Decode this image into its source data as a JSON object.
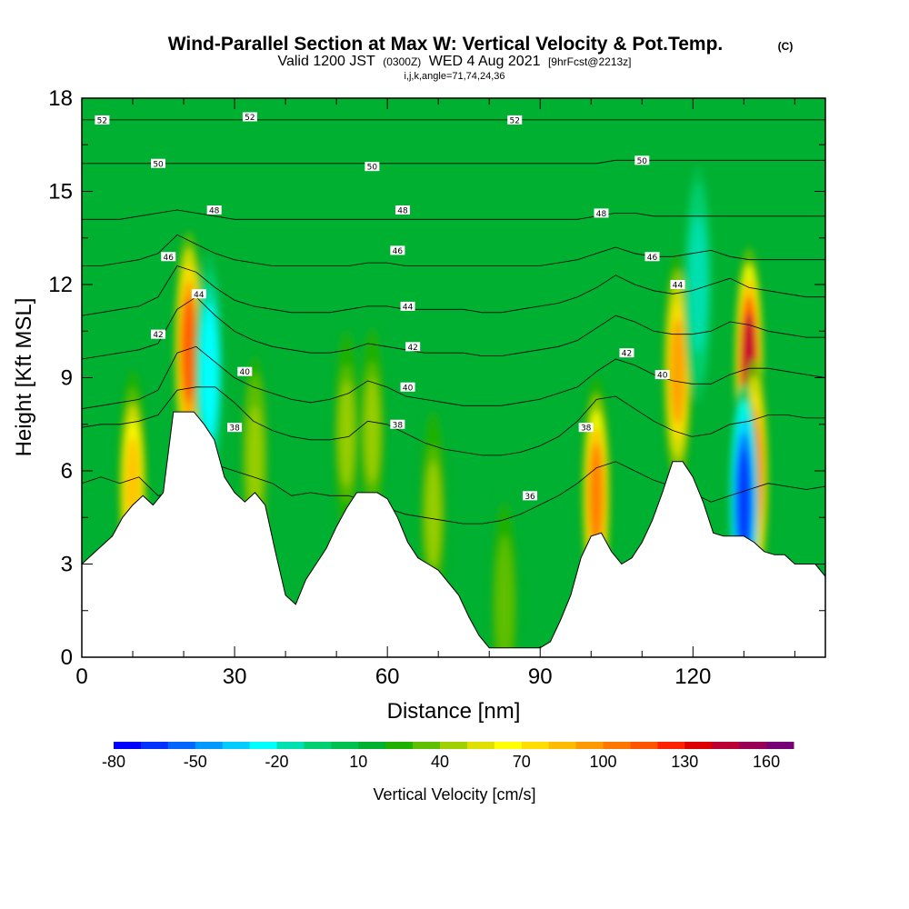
{
  "title": {
    "main": "Wind-Parallel Section at Max W: Vertical Velocity & Pot.Temp.",
    "copyright": "(C)",
    "valid_prefix": "Valid 1200 JST",
    "valid_utc": "(0300Z)",
    "valid_date": "WED 4 Aug 2021",
    "forecast": "[9hrFcst@2213z]",
    "indices": "i,j,k,angle=71,74,24,36"
  },
  "chart_data": {
    "type": "heatmap",
    "xlabel": "Distance [nm]",
    "ylabel": "Height [Kft MSL]",
    "xlim": [
      0,
      146
    ],
    "ylim": [
      0,
      18
    ],
    "x_ticks": [
      "0",
      "30",
      "60",
      "90",
      "120"
    ],
    "y_ticks": [
      "0",
      "3",
      "6",
      "9",
      "12",
      "15",
      "18"
    ],
    "x_tick_values": [
      0,
      30,
      60,
      90,
      120
    ],
    "y_tick_values": [
      0,
      3,
      6,
      9,
      12,
      15,
      18
    ],
    "x_minor_step": 10,
    "y_minor_step": 1.5,
    "background_color": "#00b030",
    "terrain": [
      [
        0,
        3.0
      ],
      [
        2,
        3.3
      ],
      [
        4,
        3.6
      ],
      [
        6,
        3.9
      ],
      [
        8,
        4.5
      ],
      [
        10,
        4.9
      ],
      [
        12,
        5.2
      ],
      [
        14,
        4.9
      ],
      [
        16,
        5.3
      ],
      [
        18,
        7.9
      ],
      [
        22,
        7.9
      ],
      [
        24,
        7.5
      ],
      [
        26,
        7.0
      ],
      [
        28,
        5.8
      ],
      [
        30,
        5.3
      ],
      [
        32,
        5.0
      ],
      [
        34,
        5.3
      ],
      [
        36,
        4.9
      ],
      [
        38,
        3.4
      ],
      [
        40,
        2.0
      ],
      [
        42,
        1.7
      ],
      [
        44,
        2.5
      ],
      [
        46,
        3.0
      ],
      [
        48,
        3.5
      ],
      [
        50,
        4.2
      ],
      [
        52,
        4.8
      ],
      [
        54,
        5.3
      ],
      [
        56,
        5.3
      ],
      [
        58,
        5.3
      ],
      [
        60,
        5.1
      ],
      [
        62,
        4.5
      ],
      [
        64,
        3.7
      ],
      [
        66,
        3.2
      ],
      [
        68,
        3.0
      ],
      [
        70,
        2.8
      ],
      [
        72,
        2.4
      ],
      [
        74,
        2.0
      ],
      [
        76,
        1.3
      ],
      [
        78,
        0.7
      ],
      [
        80,
        0.3
      ],
      [
        84,
        0.3
      ],
      [
        88,
        0.3
      ],
      [
        90,
        0.3
      ],
      [
        92,
        0.5
      ],
      [
        94,
        1.2
      ],
      [
        96,
        2.0
      ],
      [
        98,
        3.2
      ],
      [
        100,
        3.9
      ],
      [
        102,
        4.0
      ],
      [
        104,
        3.4
      ],
      [
        106,
        3.0
      ],
      [
        108,
        3.2
      ],
      [
        110,
        3.7
      ],
      [
        112,
        4.4
      ],
      [
        114,
        5.3
      ],
      [
        116,
        6.3
      ],
      [
        118,
        6.3
      ],
      [
        120,
        5.8
      ],
      [
        122,
        5.0
      ],
      [
        124,
        4.0
      ],
      [
        126,
        3.9
      ],
      [
        128,
        3.9
      ],
      [
        130,
        3.9
      ],
      [
        132,
        3.7
      ],
      [
        134,
        3.4
      ],
      [
        136,
        3.3
      ],
      [
        138,
        3.3
      ],
      [
        140,
        3.0
      ],
      [
        142,
        3.0
      ],
      [
        144,
        3.0
      ],
      [
        146,
        2.6
      ]
    ],
    "updraft_cores": [
      {
        "x": 10,
        "y": 5.4,
        "w_cms": 80
      },
      {
        "x": 21,
        "y": 9.9,
        "w_cms": 110
      },
      {
        "x": 34,
        "y": 6.4,
        "w_cms": 45
      },
      {
        "x": 52,
        "y": 7.2,
        "w_cms": 40
      },
      {
        "x": 57,
        "y": 7.3,
        "w_cms": 40
      },
      {
        "x": 69,
        "y": 4.6,
        "w_cms": 40
      },
      {
        "x": 83,
        "y": 1.7,
        "w_cms": 35
      },
      {
        "x": 101,
        "y": 5.2,
        "w_cms": 100
      },
      {
        "x": 117,
        "y": 9.2,
        "w_cms": 90
      },
      {
        "x": 131,
        "y": 9.4,
        "w_cms": 140
      },
      {
        "x": 132,
        "y": 5.8,
        "w_cms": 110
      }
    ],
    "downdraft_cores": [
      {
        "x": 25,
        "y": 9.2,
        "w_cms": -30
      },
      {
        "x": 130,
        "y": 5.0,
        "w_cms": -70
      },
      {
        "x": 121,
        "y": 12.0,
        "w_cms": -20
      }
    ],
    "isentropes": [
      {
        "label": "36",
        "y": [
          5.6,
          5.8,
          5.6,
          5.8,
          5.2,
          5.3,
          6.0,
          6.2,
          6.0,
          5.8,
          5.6,
          5.2,
          5.3,
          5.2,
          5.2,
          5.0,
          4.8,
          4.6,
          4.5,
          4.4,
          4.3,
          4.3,
          4.4,
          4.6,
          4.9,
          5.2,
          5.6,
          6.1,
          6.3,
          6.0,
          5.7,
          5.5,
          5.3,
          5.0,
          5.2,
          5.4,
          5.6,
          5.5,
          5.4,
          5.5
        ]
      },
      {
        "label": "38",
        "y": [
          7.4,
          7.5,
          7.5,
          7.6,
          7.8,
          8.6,
          8.7,
          8.7,
          8.2,
          7.6,
          7.3,
          7.1,
          7.0,
          7.0,
          7.1,
          7.6,
          7.5,
          7.2,
          6.9,
          6.7,
          6.6,
          6.5,
          6.5,
          6.6,
          6.8,
          7.1,
          7.6,
          8.3,
          8.4,
          8.0,
          7.6,
          7.3,
          7.1,
          7.2,
          7.5,
          7.6,
          7.8,
          7.8,
          7.7,
          7.7
        ]
      },
      {
        "label": "40",
        "y": [
          8.0,
          8.1,
          8.2,
          8.3,
          8.6,
          9.8,
          10.0,
          9.5,
          9.0,
          8.7,
          8.5,
          8.3,
          8.2,
          8.3,
          8.5,
          8.9,
          8.7,
          8.4,
          8.3,
          8.2,
          8.1,
          8.1,
          8.1,
          8.2,
          8.3,
          8.5,
          8.7,
          9.2,
          9.6,
          9.4,
          9.1,
          8.9,
          8.8,
          8.8,
          9.1,
          9.3,
          9.3,
          9.2,
          9.1,
          9.0
        ]
      },
      {
        "label": "42",
        "y": [
          9.6,
          9.7,
          9.8,
          9.9,
          10.1,
          11.2,
          11.6,
          11.0,
          10.5,
          10.2,
          10.0,
          9.9,
          9.8,
          9.8,
          9.9,
          10.1,
          10.0,
          9.9,
          9.8,
          9.8,
          9.8,
          9.7,
          9.7,
          9.8,
          9.9,
          10.0,
          10.2,
          10.6,
          11.0,
          10.8,
          10.5,
          10.4,
          10.4,
          10.5,
          10.8,
          10.7,
          10.5,
          10.4,
          10.3,
          10.3
        ]
      },
      {
        "label": "44",
        "y": [
          11.0,
          11.1,
          11.2,
          11.3,
          11.6,
          12.6,
          12.4,
          11.9,
          11.5,
          11.3,
          11.2,
          11.1,
          11.1,
          11.1,
          11.2,
          11.3,
          11.3,
          11.2,
          11.2,
          11.2,
          11.2,
          11.1,
          11.1,
          11.2,
          11.3,
          11.4,
          11.6,
          11.9,
          12.3,
          12.0,
          11.8,
          11.7,
          11.8,
          12.0,
          12.2,
          11.9,
          11.8,
          11.7,
          11.6,
          11.6
        ]
      },
      {
        "label": "46",
        "y": [
          12.6,
          12.6,
          12.7,
          12.8,
          13.0,
          13.6,
          13.3,
          13.0,
          12.8,
          12.7,
          12.6,
          12.6,
          12.6,
          12.6,
          12.6,
          12.7,
          12.7,
          12.6,
          12.6,
          12.6,
          12.6,
          12.6,
          12.6,
          12.6,
          12.6,
          12.7,
          12.8,
          13.0,
          13.2,
          13.0,
          12.9,
          12.9,
          13.0,
          13.1,
          12.9,
          12.8,
          12.8,
          12.8,
          12.8,
          12.8
        ]
      },
      {
        "label": "48",
        "y": [
          14.1,
          14.1,
          14.1,
          14.2,
          14.3,
          14.4,
          14.3,
          14.2,
          14.1,
          14.1,
          14.1,
          14.1,
          14.1,
          14.1,
          14.1,
          14.1,
          14.1,
          14.1,
          14.1,
          14.1,
          14.1,
          14.1,
          14.1,
          14.1,
          14.1,
          14.1,
          14.1,
          14.2,
          14.3,
          14.3,
          14.2,
          14.2,
          14.2,
          14.2,
          14.2,
          14.2,
          14.2,
          14.2,
          14.2,
          14.2
        ]
      },
      {
        "label": "50",
        "y": [
          15.9,
          15.9,
          15.9,
          15.9,
          15.9,
          15.9,
          15.9,
          15.9,
          15.9,
          15.9,
          15.9,
          15.9,
          15.9,
          15.9,
          15.9,
          15.9,
          15.9,
          15.9,
          15.9,
          15.9,
          15.9,
          15.9,
          15.9,
          15.9,
          15.9,
          15.9,
          15.9,
          15.9,
          16.0,
          16.0,
          16.0,
          16.0,
          16.0,
          16.0,
          16.0,
          16.0,
          16.0,
          16.0,
          16.0,
          16.0
        ]
      },
      {
        "label": "52",
        "y": [
          17.3,
          17.3,
          17.3,
          17.3,
          17.3,
          17.3,
          17.3,
          17.3,
          17.3,
          17.3,
          17.3,
          17.3,
          17.3,
          17.3,
          17.3,
          17.3,
          17.3,
          17.3,
          17.3,
          17.3,
          17.3,
          17.3,
          17.3,
          17.3,
          17.3,
          17.3,
          17.3,
          17.3,
          17.3,
          17.3,
          17.3,
          17.3,
          17.3,
          17.3,
          17.3,
          17.3,
          17.3,
          17.3,
          17.3,
          17.3
        ]
      }
    ],
    "contour_labels": [
      {
        "text": "52",
        "x": 4,
        "y": 17.3
      },
      {
        "text": "52",
        "x": 33,
        "y": 17.4
      },
      {
        "text": "52",
        "x": 85,
        "y": 17.3
      },
      {
        "text": "50",
        "x": 15,
        "y": 15.9
      },
      {
        "text": "50",
        "x": 57,
        "y": 15.8
      },
      {
        "text": "50",
        "x": 110,
        "y": 16.0
      },
      {
        "text": "48",
        "x": 26,
        "y": 14.4
      },
      {
        "text": "48",
        "x": 63,
        "y": 14.4
      },
      {
        "text": "48",
        "x": 102,
        "y": 14.3
      },
      {
        "text": "46",
        "x": 17,
        "y": 12.9
      },
      {
        "text": "46",
        "x": 62,
        "y": 13.1
      },
      {
        "text": "46",
        "x": 112,
        "y": 12.9
      },
      {
        "text": "44",
        "x": 23,
        "y": 11.7
      },
      {
        "text": "44",
        "x": 64,
        "y": 11.3
      },
      {
        "text": "44",
        "x": 117,
        "y": 12.0
      },
      {
        "text": "42",
        "x": 15,
        "y": 10.4
      },
      {
        "text": "42",
        "x": 65,
        "y": 10.0
      },
      {
        "text": "42",
        "x": 107,
        "y": 9.8
      },
      {
        "text": "40",
        "x": 32,
        "y": 9.2
      },
      {
        "text": "40",
        "x": 64,
        "y": 8.7
      },
      {
        "text": "40",
        "x": 114,
        "y": 9.1
      },
      {
        "text": "38",
        "x": 30,
        "y": 7.4
      },
      {
        "text": "38",
        "x": 62,
        "y": 7.5
      },
      {
        "text": "38",
        "x": 99,
        "y": 7.4
      },
      {
        "text": "36",
        "x": 88,
        "y": 5.2
      }
    ],
    "colorbar": {
      "title": "Vertical Velocity [cm/s]",
      "labels": [
        "-80",
        "-50",
        "-20",
        "10",
        "40",
        "70",
        "100",
        "130",
        "160"
      ],
      "label_values": [
        -80,
        -50,
        -20,
        10,
        40,
        70,
        100,
        130,
        160
      ],
      "range": [
        -80,
        170
      ],
      "step": 10,
      "colors": [
        "#0000ff",
        "#0033ff",
        "#0066ff",
        "#0099ff",
        "#00ccff",
        "#00ffff",
        "#00e0b0",
        "#00d070",
        "#00c050",
        "#00b030",
        "#20b000",
        "#60c000",
        "#a0d000",
        "#e0e000",
        "#ffff00",
        "#ffdd00",
        "#ffbb00",
        "#ff9900",
        "#ff7700",
        "#ff5500",
        "#ff2200",
        "#dd0000",
        "#bb0033",
        "#990055",
        "#770077"
      ]
    }
  }
}
